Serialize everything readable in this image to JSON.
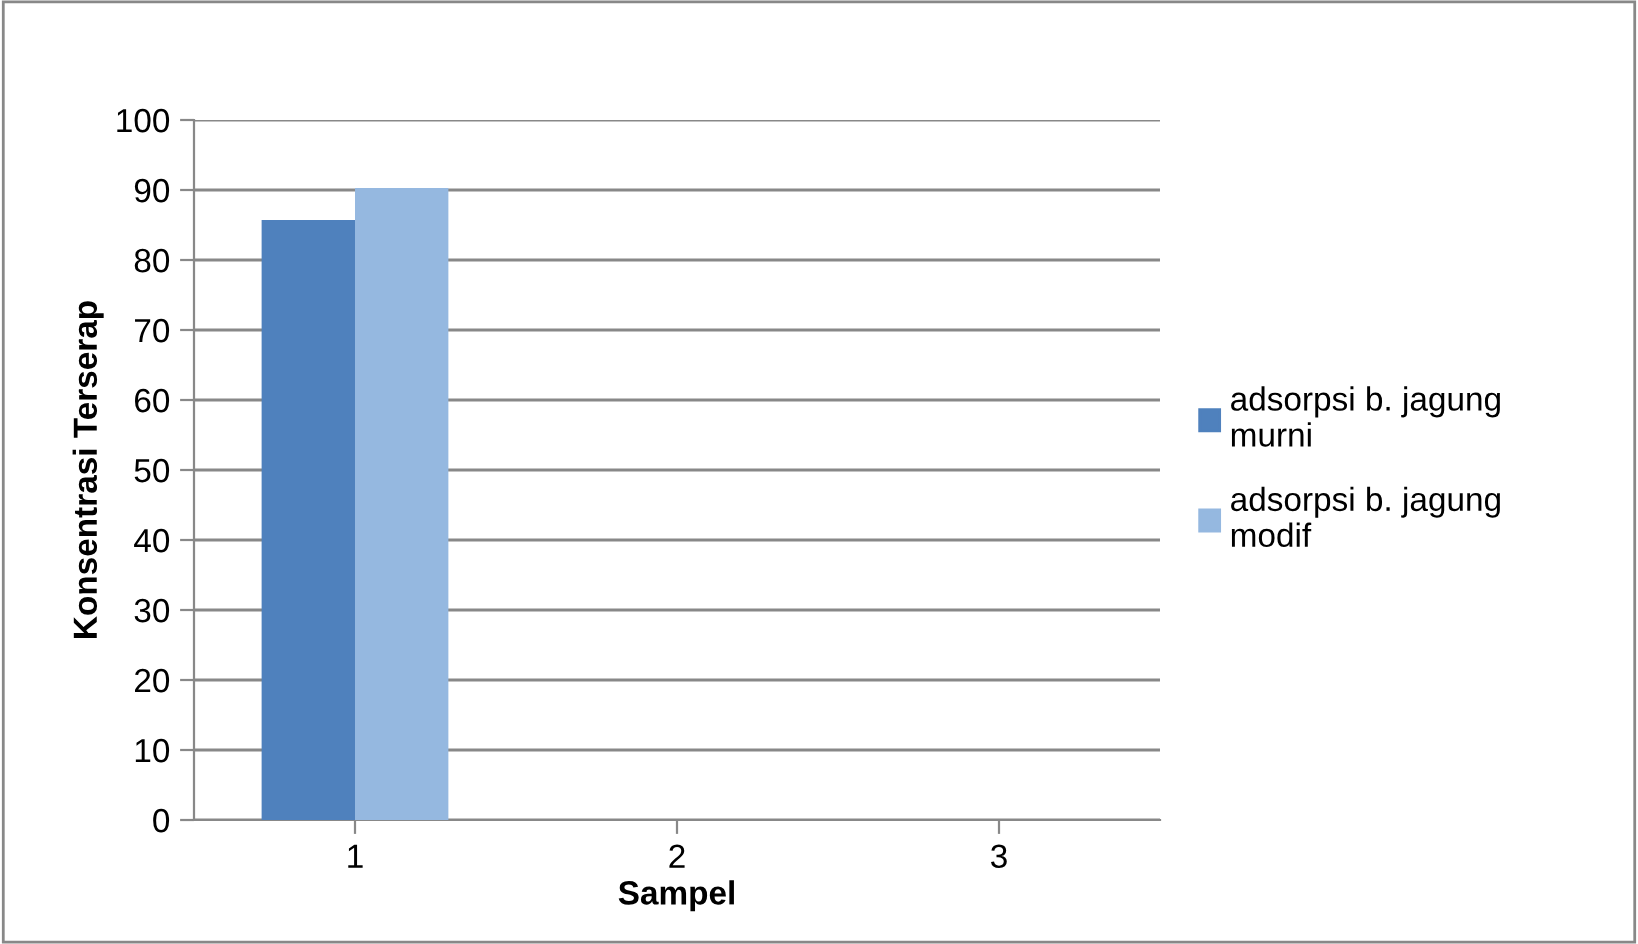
{
  "chart_data": {
    "type": "bar",
    "xlabel": "Sampel",
    "ylabel": "Konsentrasi Terserap",
    "categories": [
      "1",
      "2",
      "3"
    ],
    "series": [
      {
        "name": "adsorpsi b. jagung murni",
        "color": "#4f81bd",
        "values": [
          85.7,
          null,
          null
        ]
      },
      {
        "name": "adsorpsi b. jagung modif",
        "color": "#95b8e0",
        "values": [
          90.3,
          null,
          null
        ]
      }
    ],
    "ylim": [
      0,
      100
    ],
    "yticks": [
      0,
      10,
      20,
      30,
      40,
      50,
      60,
      70,
      80,
      90,
      100
    ],
    "grid": "y",
    "legend": "right"
  }
}
